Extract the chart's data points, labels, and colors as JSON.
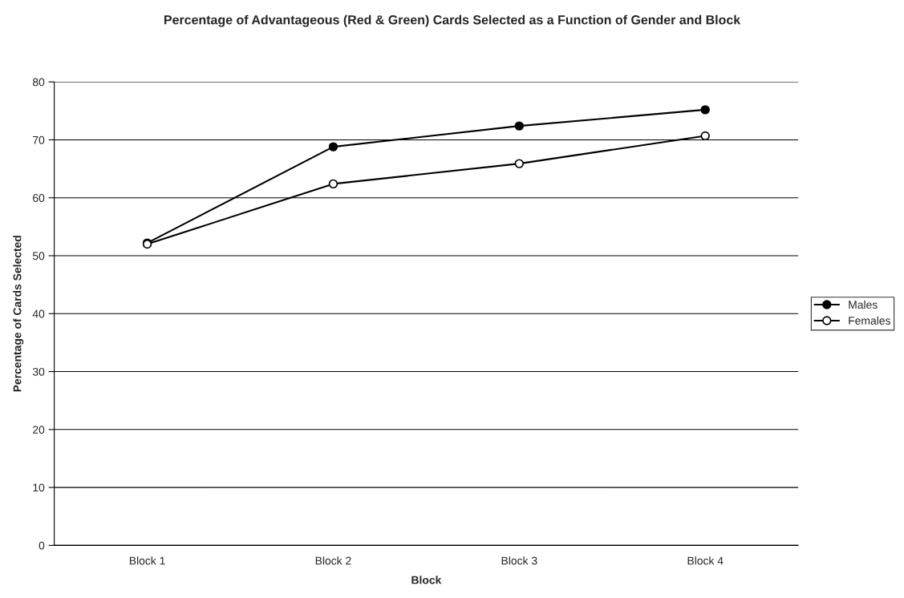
{
  "chart_data": {
    "type": "line",
    "title": "Percentage of Advantageous (Red & Green) Cards Selected as a Function of Gender and Block",
    "xlabel": "Block",
    "ylabel": "Percentage of Cards Selected",
    "categories": [
      "Block 1",
      "Block 2",
      "Block 3",
      "Block 4"
    ],
    "series": [
      {
        "name": "Males",
        "color": "#000000",
        "values": [
          52.2,
          68.8,
          72.4,
          75.2
        ]
      },
      {
        "name": "Females",
        "color": "#000000",
        "values": [
          52.0,
          62.4,
          65.9,
          70.7
        ]
      }
    ],
    "ylim": [
      0,
      80
    ],
    "yticks": [
      0,
      10,
      20,
      30,
      40,
      50,
      60,
      70,
      80
    ],
    "grid": "y",
    "legend": "right",
    "marker": "circle",
    "line_style": "solid"
  }
}
